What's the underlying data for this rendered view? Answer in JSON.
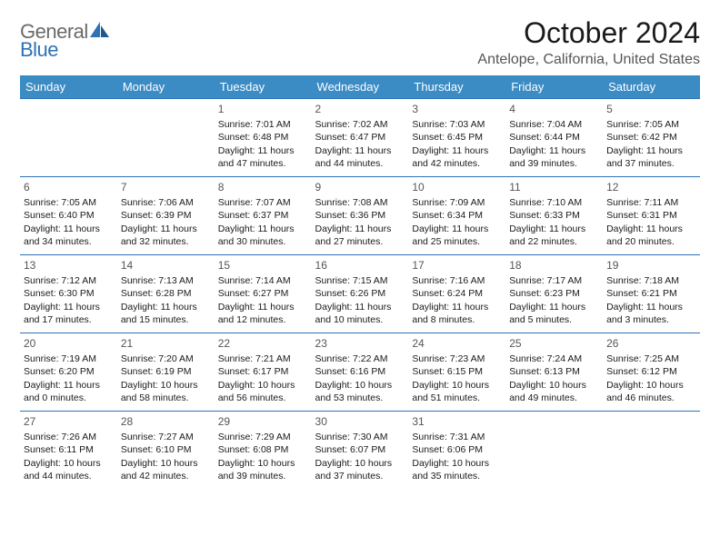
{
  "logo": {
    "word1": "General",
    "word2": "Blue"
  },
  "title": "October 2024",
  "location": "Antelope, California, United States",
  "colors": {
    "header_bg": "#3b8bc4",
    "header_text": "#ffffff",
    "cell_border": "#2d72b5",
    "daynum_color": "#555555",
    "text_color": "#1a1a1a",
    "logo_blue": "#2d72b5",
    "logo_gray": "#6a6a6a",
    "location_color": "#555555",
    "background": "#ffffff"
  },
  "typography": {
    "title_fontsize": 32,
    "location_fontsize": 16,
    "header_fontsize": 13,
    "cell_fontsize": 10.5,
    "daynum_fontsize": 12,
    "logo_fontsize": 22
  },
  "weekdays": [
    "Sunday",
    "Monday",
    "Tuesday",
    "Wednesday",
    "Thursday",
    "Friday",
    "Saturday"
  ],
  "grid": [
    [
      null,
      null,
      {
        "n": "1",
        "sr": "7:01 AM",
        "ss": "6:48 PM",
        "dl1": "11 hours",
        "dl2": "and 47 minutes."
      },
      {
        "n": "2",
        "sr": "7:02 AM",
        "ss": "6:47 PM",
        "dl1": "11 hours",
        "dl2": "and 44 minutes."
      },
      {
        "n": "3",
        "sr": "7:03 AM",
        "ss": "6:45 PM",
        "dl1": "11 hours",
        "dl2": "and 42 minutes."
      },
      {
        "n": "4",
        "sr": "7:04 AM",
        "ss": "6:44 PM",
        "dl1": "11 hours",
        "dl2": "and 39 minutes."
      },
      {
        "n": "5",
        "sr": "7:05 AM",
        "ss": "6:42 PM",
        "dl1": "11 hours",
        "dl2": "and 37 minutes."
      }
    ],
    [
      {
        "n": "6",
        "sr": "7:05 AM",
        "ss": "6:40 PM",
        "dl1": "11 hours",
        "dl2": "and 34 minutes."
      },
      {
        "n": "7",
        "sr": "7:06 AM",
        "ss": "6:39 PM",
        "dl1": "11 hours",
        "dl2": "and 32 minutes."
      },
      {
        "n": "8",
        "sr": "7:07 AM",
        "ss": "6:37 PM",
        "dl1": "11 hours",
        "dl2": "and 30 minutes."
      },
      {
        "n": "9",
        "sr": "7:08 AM",
        "ss": "6:36 PM",
        "dl1": "11 hours",
        "dl2": "and 27 minutes."
      },
      {
        "n": "10",
        "sr": "7:09 AM",
        "ss": "6:34 PM",
        "dl1": "11 hours",
        "dl2": "and 25 minutes."
      },
      {
        "n": "11",
        "sr": "7:10 AM",
        "ss": "6:33 PM",
        "dl1": "11 hours",
        "dl2": "and 22 minutes."
      },
      {
        "n": "12",
        "sr": "7:11 AM",
        "ss": "6:31 PM",
        "dl1": "11 hours",
        "dl2": "and 20 minutes."
      }
    ],
    [
      {
        "n": "13",
        "sr": "7:12 AM",
        "ss": "6:30 PM",
        "dl1": "11 hours",
        "dl2": "and 17 minutes."
      },
      {
        "n": "14",
        "sr": "7:13 AM",
        "ss": "6:28 PM",
        "dl1": "11 hours",
        "dl2": "and 15 minutes."
      },
      {
        "n": "15",
        "sr": "7:14 AM",
        "ss": "6:27 PM",
        "dl1": "11 hours",
        "dl2": "and 12 minutes."
      },
      {
        "n": "16",
        "sr": "7:15 AM",
        "ss": "6:26 PM",
        "dl1": "11 hours",
        "dl2": "and 10 minutes."
      },
      {
        "n": "17",
        "sr": "7:16 AM",
        "ss": "6:24 PM",
        "dl1": "11 hours",
        "dl2": "and 8 minutes."
      },
      {
        "n": "18",
        "sr": "7:17 AM",
        "ss": "6:23 PM",
        "dl1": "11 hours",
        "dl2": "and 5 minutes."
      },
      {
        "n": "19",
        "sr": "7:18 AM",
        "ss": "6:21 PM",
        "dl1": "11 hours",
        "dl2": "and 3 minutes."
      }
    ],
    [
      {
        "n": "20",
        "sr": "7:19 AM",
        "ss": "6:20 PM",
        "dl1": "11 hours",
        "dl2": "and 0 minutes."
      },
      {
        "n": "21",
        "sr": "7:20 AM",
        "ss": "6:19 PM",
        "dl1": "10 hours",
        "dl2": "and 58 minutes."
      },
      {
        "n": "22",
        "sr": "7:21 AM",
        "ss": "6:17 PM",
        "dl1": "10 hours",
        "dl2": "and 56 minutes."
      },
      {
        "n": "23",
        "sr": "7:22 AM",
        "ss": "6:16 PM",
        "dl1": "10 hours",
        "dl2": "and 53 minutes."
      },
      {
        "n": "24",
        "sr": "7:23 AM",
        "ss": "6:15 PM",
        "dl1": "10 hours",
        "dl2": "and 51 minutes."
      },
      {
        "n": "25",
        "sr": "7:24 AM",
        "ss": "6:13 PM",
        "dl1": "10 hours",
        "dl2": "and 49 minutes."
      },
      {
        "n": "26",
        "sr": "7:25 AM",
        "ss": "6:12 PM",
        "dl1": "10 hours",
        "dl2": "and 46 minutes."
      }
    ],
    [
      {
        "n": "27",
        "sr": "7:26 AM",
        "ss": "6:11 PM",
        "dl1": "10 hours",
        "dl2": "and 44 minutes."
      },
      {
        "n": "28",
        "sr": "7:27 AM",
        "ss": "6:10 PM",
        "dl1": "10 hours",
        "dl2": "and 42 minutes."
      },
      {
        "n": "29",
        "sr": "7:29 AM",
        "ss": "6:08 PM",
        "dl1": "10 hours",
        "dl2": "and 39 minutes."
      },
      {
        "n": "30",
        "sr": "7:30 AM",
        "ss": "6:07 PM",
        "dl1": "10 hours",
        "dl2": "and 37 minutes."
      },
      {
        "n": "31",
        "sr": "7:31 AM",
        "ss": "6:06 PM",
        "dl1": "10 hours",
        "dl2": "and 35 minutes."
      },
      null,
      null
    ]
  ],
  "labels": {
    "sunrise_prefix": "Sunrise: ",
    "sunset_prefix": "Sunset: ",
    "daylight_prefix": "Daylight: "
  }
}
